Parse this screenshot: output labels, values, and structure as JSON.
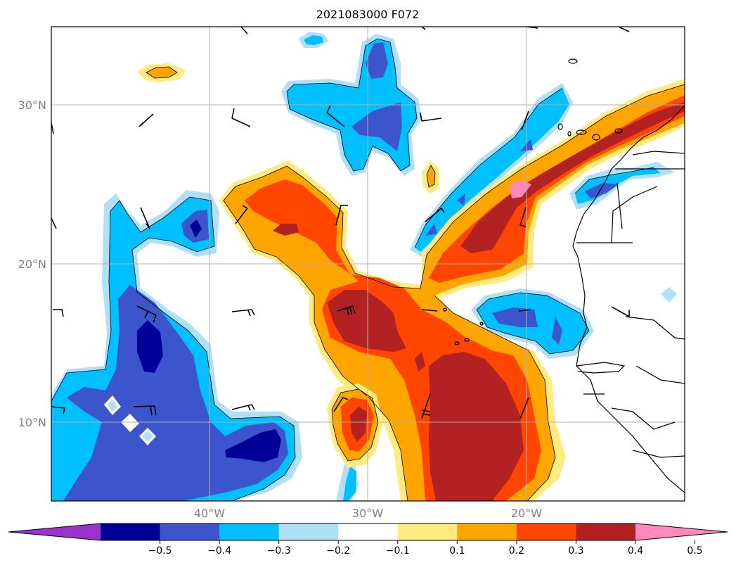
{
  "title": "2021083000 F072",
  "lat_labels": [
    "30°N",
    "20°N",
    "10°N"
  ],
  "lon_labels": [
    "40°W",
    "30°W",
    "20°W"
  ],
  "colorbar": {
    "ticks": [
      "−0.5",
      "−0.4",
      "−0.3",
      "−0.2",
      "−0.1",
      "0.1",
      "0.2",
      "0.3",
      "0.4",
      "0.5"
    ],
    "colors": [
      "#9933cc",
      "#000099",
      "#3d55cc",
      "#00bfff",
      "#b0e0f7",
      "#ffffff",
      "#ffeb80",
      "#ffa500",
      "#ff4500",
      "#b22222",
      "#ff88bb"
    ]
  }
}
